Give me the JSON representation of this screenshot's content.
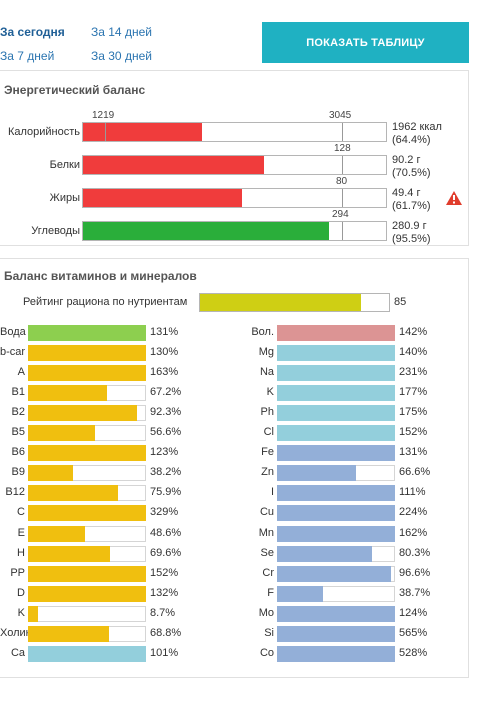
{
  "periods": [
    {
      "label": "За сегодня",
      "active": true
    },
    {
      "label": "За 14 дней",
      "active": false
    },
    {
      "label": "За 7 дней",
      "active": false
    },
    {
      "label": "За 30 дней",
      "active": false
    }
  ],
  "show_table_label": "ПОКАЗАТЬ ТАБЛИЦУ",
  "energy": {
    "title": "Энергетический баланс",
    "rows": [
      {
        "label": "Калорийность",
        "fraction": 0.394,
        "color": "#f03c3c",
        "value_line1": "1962 ккал",
        "value_line2": "(64.4%)",
        "ticks": [
          "1219",
          "3045"
        ],
        "warning": false
      },
      {
        "label": "Белки",
        "fraction": 0.596,
        "color": "#f03c3c",
        "value_line1": "90.2 г",
        "value_line2": "(70.5%)",
        "ticks": [
          "128"
        ],
        "warning": false
      },
      {
        "label": "Жиры",
        "fraction": 0.525,
        "color": "#f03c3c",
        "value_line1": "49.4 г",
        "value_line2": "(61.7%)",
        "ticks": [
          "80"
        ],
        "warning": true
      },
      {
        "label": "Углеводы",
        "fraction": 0.812,
        "color": "#2aae3a",
        "value_line1": "280.9 г",
        "value_line2": "(95.5%)",
        "ticks": [
          "294"
        ],
        "warning": false
      }
    ]
  },
  "micro": {
    "title": "Баланс витаминов и минералов",
    "rating_label": "Рейтинг рациона по нутриентам",
    "rating_value": "85",
    "rating_fraction": 0.85,
    "rating_color": "#cfcf14",
    "colors": {
      "green": "#8dcf4f",
      "yellow": "#f0bf0f",
      "cyan": "#93cfdc",
      "pink": "#dc9494",
      "blue": "#93afd8"
    },
    "left": [
      {
        "label": "Вода",
        "value": "131%",
        "fill": 1.0,
        "color": "#8dcf4f"
      },
      {
        "label": "b-car",
        "value": "130%",
        "fill": 1.0,
        "color": "#f0bf0f"
      },
      {
        "label": "A",
        "value": "163%",
        "fill": 1.0,
        "color": "#f0bf0f"
      },
      {
        "label": "B1",
        "value": "67.2%",
        "fill": 0.672,
        "color": "#f0bf0f"
      },
      {
        "label": "B2",
        "value": "92.3%",
        "fill": 0.923,
        "color": "#f0bf0f"
      },
      {
        "label": "B5",
        "value": "56.6%",
        "fill": 0.566,
        "color": "#f0bf0f"
      },
      {
        "label": "B6",
        "value": "123%",
        "fill": 1.0,
        "color": "#f0bf0f"
      },
      {
        "label": "B9",
        "value": "38.2%",
        "fill": 0.382,
        "color": "#f0bf0f"
      },
      {
        "label": "B12",
        "value": "75.9%",
        "fill": 0.759,
        "color": "#f0bf0f"
      },
      {
        "label": "C",
        "value": "329%",
        "fill": 1.0,
        "color": "#f0bf0f"
      },
      {
        "label": "E",
        "value": "48.6%",
        "fill": 0.486,
        "color": "#f0bf0f"
      },
      {
        "label": "H",
        "value": "69.6%",
        "fill": 0.696,
        "color": "#f0bf0f"
      },
      {
        "label": "PP",
        "value": "152%",
        "fill": 1.0,
        "color": "#f0bf0f"
      },
      {
        "label": "D",
        "value": "132%",
        "fill": 1.0,
        "color": "#f0bf0f"
      },
      {
        "label": "K",
        "value": "8.7%",
        "fill": 0.087,
        "color": "#f0bf0f"
      },
      {
        "label": "Холин",
        "value": "68.8%",
        "fill": 0.688,
        "color": "#f0bf0f"
      },
      {
        "label": "Ca",
        "value": "101%",
        "fill": 1.0,
        "color": "#93cfdc"
      }
    ],
    "right": [
      {
        "label": "Вол.",
        "value": "142%",
        "fill": 1.0,
        "color": "#dc9494"
      },
      {
        "label": "Mg",
        "value": "140%",
        "fill": 1.0,
        "color": "#93cfdc"
      },
      {
        "label": "Na",
        "value": "231%",
        "fill": 1.0,
        "color": "#93cfdc"
      },
      {
        "label": "K",
        "value": "177%",
        "fill": 1.0,
        "color": "#93cfdc"
      },
      {
        "label": "Ph",
        "value": "175%",
        "fill": 1.0,
        "color": "#93cfdc"
      },
      {
        "label": "Cl",
        "value": "152%",
        "fill": 1.0,
        "color": "#93cfdc"
      },
      {
        "label": "Fe",
        "value": "131%",
        "fill": 1.0,
        "color": "#93afd8"
      },
      {
        "label": "Zn",
        "value": "66.6%",
        "fill": 0.666,
        "color": "#93afd8"
      },
      {
        "label": "I",
        "value": "111%",
        "fill": 1.0,
        "color": "#93afd8"
      },
      {
        "label": "Cu",
        "value": "224%",
        "fill": 1.0,
        "color": "#93afd8"
      },
      {
        "label": "Mn",
        "value": "162%",
        "fill": 1.0,
        "color": "#93afd8"
      },
      {
        "label": "Se",
        "value": "80.3%",
        "fill": 0.803,
        "color": "#93afd8"
      },
      {
        "label": "Cr",
        "value": "96.6%",
        "fill": 0.966,
        "color": "#93afd8"
      },
      {
        "label": "F",
        "value": "38.7%",
        "fill": 0.387,
        "color": "#93afd8"
      },
      {
        "label": "Mo",
        "value": "124%",
        "fill": 1.0,
        "color": "#93afd8"
      },
      {
        "label": "Si",
        "value": "565%",
        "fill": 1.0,
        "color": "#93afd8"
      },
      {
        "label": "Co",
        "value": "528%",
        "fill": 1.0,
        "color": "#93afd8"
      }
    ]
  }
}
